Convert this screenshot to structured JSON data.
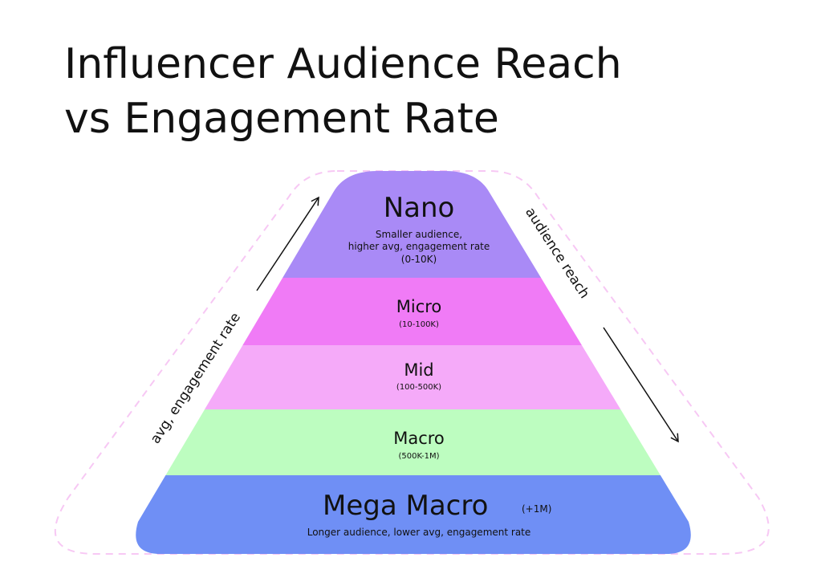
{
  "title": [
    "Influencer Audience Reach",
    "vs Engagement Rate"
  ],
  "tiers": [
    {
      "name": "Nano",
      "description": [
        "Smaller audience,",
        "higher avg, engagement rate"
      ],
      "range": "(0-10K)"
    },
    {
      "name": "Micro",
      "range": "(10-100K)"
    },
    {
      "name": "Mid",
      "range": "(100-500K)"
    },
    {
      "name": "Macro",
      "range": "(500K-1M)"
    },
    {
      "name": "Mega Macro",
      "range": "(+1M)",
      "description": [
        "Longer audience, lower avg, engagement rate"
      ]
    }
  ],
  "left_arrow_label": "avg, engagement rate",
  "right_arrow_label": "audience reach"
}
